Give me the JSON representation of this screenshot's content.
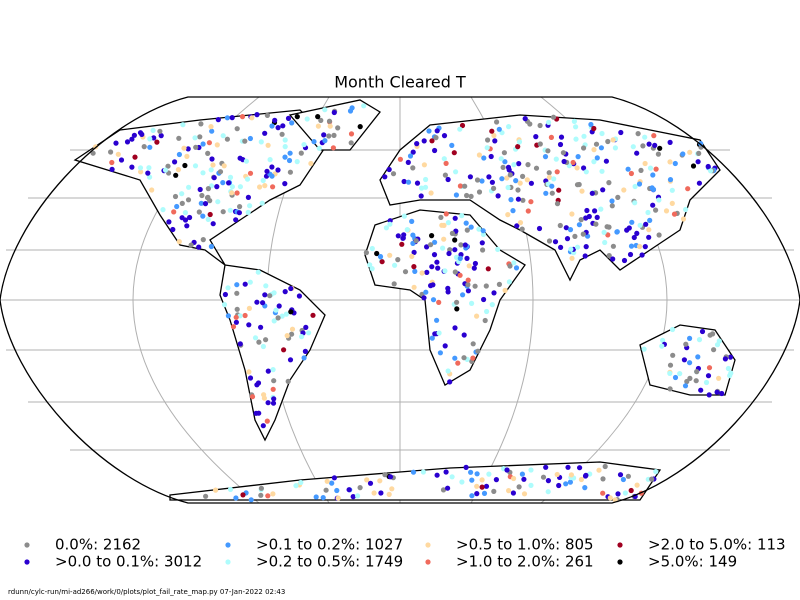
{
  "title": "Month Cleared T",
  "legend": [
    {
      "label": "0.0%: 2162",
      "color": "#8c8c8c"
    },
    {
      "label": ">0.0 to 0.1%: 3012",
      "color": "#2a00d0"
    },
    {
      "label": ">0.1 to 0.2%: 1027",
      "color": "#4499ff"
    },
    {
      "label": ">0.2 to 0.5%: 1749",
      "color": "#aefcfc"
    },
    {
      "label": ">0.5 to 1.0%: 805",
      "color": "#ffd9a0"
    },
    {
      "label": ">1.0 to 2.0%: 261",
      "color": "#f06a5c"
    },
    {
      "label": ">2.0 to 5.0%: 113",
      "color": "#a00020"
    },
    {
      "label": ">5.0%: 149",
      "color": "#000000"
    }
  ],
  "footer": "rdunn/cylc-run/mi-ad266/work/0/plots/plot_fail_rate_map.py   07-Jan-2022 02:43"
}
